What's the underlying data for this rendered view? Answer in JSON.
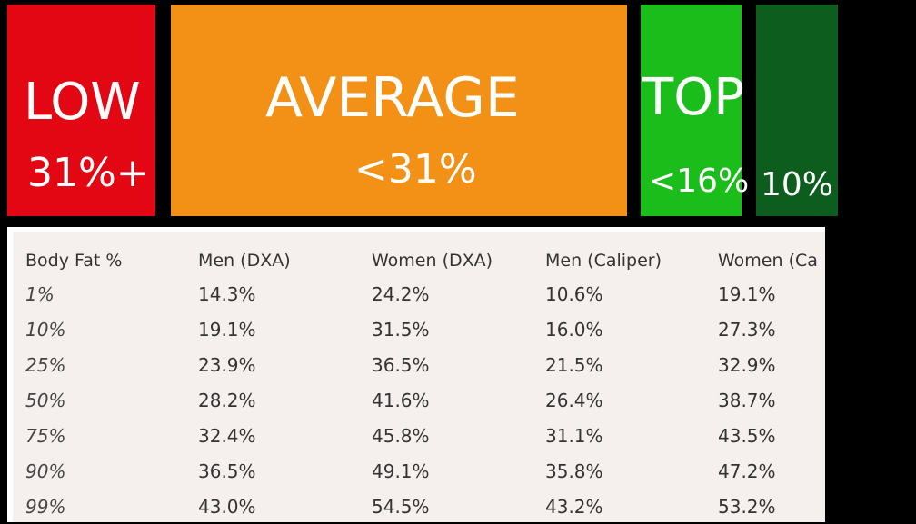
{
  "colors": {
    "low": "#e30613",
    "average": "#f39117",
    "top": "#1bbd1b",
    "elite": "#0d5e1e",
    "table_background": "#f5f0ee"
  },
  "bands": {
    "low": {
      "title": "LOW",
      "value": "31%+"
    },
    "average": {
      "title": "AVERAGE",
      "value": "<31%"
    },
    "top": {
      "title": "TOP",
      "value": "<16%"
    },
    "elite": {
      "value": "10%"
    }
  },
  "table": {
    "headers": [
      "Body Fat %",
      "Men (DXA)",
      "Women (DXA)",
      "Men (Caliper)",
      "Women (Ca"
    ],
    "rows": [
      [
        "1%",
        "14.3%",
        "24.2%",
        "10.6%",
        "19.1%"
      ],
      [
        "10%",
        "19.1%",
        "31.5%",
        "16.0%",
        "27.3%"
      ],
      [
        "25%",
        "23.9%",
        "36.5%",
        "21.5%",
        "32.9%"
      ],
      [
        "50%",
        "28.2%",
        "41.6%",
        "26.4%",
        "38.7%"
      ],
      [
        "75%",
        "32.4%",
        "45.8%",
        "31.1%",
        "43.5%"
      ],
      [
        "90%",
        "36.5%",
        "49.1%",
        "35.8%",
        "47.2%"
      ],
      [
        "99%",
        "43.0%",
        "54.5%",
        "43.2%",
        "53.2%"
      ]
    ]
  }
}
